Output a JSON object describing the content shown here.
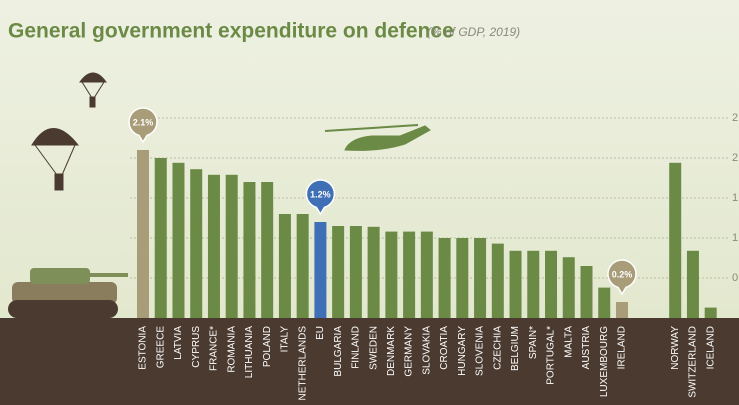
{
  "chart_data": {
    "type": "bar",
    "title": "General government expenditure on defence",
    "subtitle": "(% of GDP, 2019)",
    "categories": [
      "ESTONIA",
      "GREECE",
      "LATVIA",
      "CYPRUS",
      "FRANCE*",
      "ROMANIA",
      "LITHUANIA",
      "POLAND",
      "ITALY",
      "NETHERLANDS",
      "EU",
      "BULGARIA",
      "FINLAND",
      "SWEDEN",
      "DENMARK",
      "GERMANY",
      "SLOVAKIA",
      "CROATIA",
      "HUNGARY",
      "SLOVENIA",
      "CZECHIA",
      "BELGIUM",
      "SPAIN*",
      "PORTUGAL*",
      "MALTA",
      "AUSTRIA",
      "LUXEMBOURG",
      "IRELAND",
      "NORWAY",
      "SWITZERLAND",
      "ICELAND"
    ],
    "values": [
      2.1,
      2.0,
      1.94,
      1.86,
      1.79,
      1.79,
      1.7,
      1.7,
      1.3,
      1.3,
      1.2,
      1.15,
      1.15,
      1.14,
      1.08,
      1.08,
      1.08,
      1.0,
      1.0,
      1.0,
      0.93,
      0.84,
      0.84,
      0.84,
      0.76,
      0.65,
      0.38,
      0.2,
      1.94,
      0.84,
      0.13
    ],
    "value_labels": [
      "2.1%",
      null,
      null,
      null,
      null,
      null,
      null,
      null,
      null,
      null,
      "1.2%",
      null,
      null,
      null,
      null,
      null,
      null,
      null,
      null,
      null,
      null,
      null,
      null,
      null,
      null,
      null,
      null,
      "0.2%",
      null,
      null,
      null
    ],
    "colors": [
      "#a99c79",
      "#6b8a45",
      "#6b8a45",
      "#6b8a45",
      "#6b8a45",
      "#6b8a45",
      "#6b8a45",
      "#6b8a45",
      "#6b8a45",
      "#6b8a45",
      "#3f6fb5",
      "#6b8a45",
      "#6b8a45",
      "#6b8a45",
      "#6b8a45",
      "#6b8a45",
      "#6b8a45",
      "#6b8a45",
      "#6b8a45",
      "#6b8a45",
      "#6b8a45",
      "#6b8a45",
      "#6b8a45",
      "#6b8a45",
      "#6b8a45",
      "#6b8a45",
      "#6b8a45",
      "#a99c79",
      "#6b8a45",
      "#6b8a45",
      "#6b8a45"
    ],
    "ylim": [
      0,
      2.75
    ],
    "yticks": [
      {
        "value": 0.5,
        "label": "0."
      },
      {
        "value": 1.0,
        "label": "1."
      },
      {
        "value": 1.5,
        "label": "1."
      },
      {
        "value": 2.0,
        "label": "2."
      },
      {
        "value": 2.5,
        "label": "2."
      }
    ],
    "grid": true
  }
}
